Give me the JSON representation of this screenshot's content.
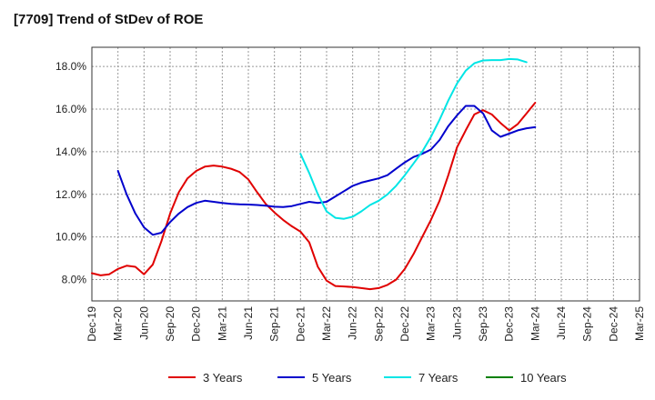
{
  "chart_data": {
    "type": "line",
    "title": "[7709]  Trend of StDev of ROE",
    "xlabel": "",
    "ylabel": "",
    "ylim": [
      7.0,
      18.9
    ],
    "grid": true,
    "legend_position": "bottom",
    "y_ticks": [
      {
        "value": 8,
        "label": "8.0%"
      },
      {
        "value": 10,
        "label": "10.0%"
      },
      {
        "value": 12,
        "label": "12.0%"
      },
      {
        "value": 14,
        "label": "14.0%"
      },
      {
        "value": 16,
        "label": "16.0%"
      },
      {
        "value": 18,
        "label": "18.0%"
      }
    ],
    "x_ticks": [
      "Dec-19",
      "Mar-20",
      "Jun-20",
      "Sep-20",
      "Dec-20",
      "Mar-21",
      "Jun-21",
      "Sep-21",
      "Dec-21",
      "Mar-22",
      "Jun-22",
      "Sep-22",
      "Dec-22",
      "Mar-23",
      "Jun-23",
      "Sep-23",
      "Dec-23",
      "Mar-24",
      "Jun-24",
      "Sep-24",
      "Dec-24",
      "Mar-25"
    ],
    "series": [
      {
        "name": "3 Years",
        "color": "#e00000",
        "points": [
          [
            0,
            8.3
          ],
          [
            1,
            8.2
          ],
          [
            2,
            8.25
          ],
          [
            3,
            8.5
          ],
          [
            4,
            8.65
          ],
          [
            5,
            8.6
          ],
          [
            6,
            8.25
          ],
          [
            7,
            8.7
          ],
          [
            8,
            9.8
          ],
          [
            9,
            11.1
          ],
          [
            10,
            12.1
          ],
          [
            11,
            12.75
          ],
          [
            12,
            13.1
          ],
          [
            13,
            13.3
          ],
          [
            14,
            13.35
          ],
          [
            15,
            13.3
          ],
          [
            16,
            13.2
          ],
          [
            17,
            13.05
          ],
          [
            18,
            12.7
          ],
          [
            19,
            12.1
          ],
          [
            20,
            11.55
          ],
          [
            21,
            11.15
          ],
          [
            22,
            10.8
          ],
          [
            23,
            10.5
          ],
          [
            24,
            10.25
          ],
          [
            25,
            9.75
          ],
          [
            26,
            8.6
          ],
          [
            27,
            7.95
          ],
          [
            28,
            7.7
          ],
          [
            29,
            7.68
          ],
          [
            30,
            7.65
          ],
          [
            31,
            7.6
          ],
          [
            32,
            7.55
          ],
          [
            33,
            7.6
          ],
          [
            34,
            7.75
          ],
          [
            35,
            8.0
          ],
          [
            36,
            8.5
          ],
          [
            37,
            9.2
          ],
          [
            38,
            10.0
          ],
          [
            39,
            10.8
          ],
          [
            40,
            11.7
          ],
          [
            41,
            12.9
          ],
          [
            42,
            14.2
          ],
          [
            43,
            15.0
          ],
          [
            44,
            15.75
          ],
          [
            45,
            15.95
          ],
          [
            46,
            15.75
          ],
          [
            47,
            15.35
          ],
          [
            48,
            15.0
          ],
          [
            49,
            15.3
          ],
          [
            50,
            15.8
          ],
          [
            51,
            16.3
          ]
        ]
      },
      {
        "name": "5 Years",
        "color": "#0000cc",
        "points": [
          [
            3,
            13.1
          ],
          [
            4,
            12.0
          ],
          [
            5,
            11.1
          ],
          [
            6,
            10.45
          ],
          [
            7,
            10.1
          ],
          [
            8,
            10.2
          ],
          [
            9,
            10.7
          ],
          [
            10,
            11.1
          ],
          [
            11,
            11.4
          ],
          [
            12,
            11.6
          ],
          [
            13,
            11.7
          ],
          [
            14,
            11.65
          ],
          [
            15,
            11.6
          ],
          [
            16,
            11.55
          ],
          [
            17,
            11.53
          ],
          [
            18,
            11.52
          ],
          [
            19,
            11.5
          ],
          [
            20,
            11.47
          ],
          [
            21,
            11.42
          ],
          [
            22,
            11.4
          ],
          [
            23,
            11.45
          ],
          [
            24,
            11.55
          ],
          [
            25,
            11.65
          ],
          [
            26,
            11.6
          ],
          [
            27,
            11.65
          ],
          [
            28,
            11.9
          ],
          [
            29,
            12.15
          ],
          [
            30,
            12.4
          ],
          [
            31,
            12.55
          ],
          [
            32,
            12.65
          ],
          [
            33,
            12.75
          ],
          [
            34,
            12.9
          ],
          [
            35,
            13.2
          ],
          [
            36,
            13.5
          ],
          [
            37,
            13.75
          ],
          [
            38,
            13.9
          ],
          [
            39,
            14.1
          ],
          [
            40,
            14.55
          ],
          [
            41,
            15.2
          ],
          [
            42,
            15.7
          ],
          [
            43,
            16.15
          ],
          [
            44,
            16.15
          ],
          [
            45,
            15.8
          ],
          [
            46,
            15.0
          ],
          [
            47,
            14.7
          ],
          [
            48,
            14.85
          ],
          [
            49,
            15.0
          ],
          [
            50,
            15.1
          ],
          [
            51,
            15.15
          ]
        ]
      },
      {
        "name": "7 Years",
        "color": "#00e5e5",
        "points": [
          [
            24,
            13.9
          ],
          [
            25,
            13.0
          ],
          [
            26,
            12.0
          ],
          [
            27,
            11.2
          ],
          [
            28,
            10.9
          ],
          [
            29,
            10.85
          ],
          [
            30,
            10.95
          ],
          [
            31,
            11.2
          ],
          [
            32,
            11.5
          ],
          [
            33,
            11.7
          ],
          [
            34,
            12.0
          ],
          [
            35,
            12.4
          ],
          [
            36,
            12.9
          ],
          [
            37,
            13.45
          ],
          [
            38,
            14.0
          ],
          [
            39,
            14.7
          ],
          [
            40,
            15.5
          ],
          [
            41,
            16.4
          ],
          [
            42,
            17.2
          ],
          [
            43,
            17.8
          ],
          [
            44,
            18.15
          ],
          [
            45,
            18.28
          ],
          [
            46,
            18.3
          ],
          [
            47,
            18.3
          ],
          [
            48,
            18.35
          ],
          [
            49,
            18.33
          ],
          [
            50,
            18.2
          ]
        ]
      },
      {
        "name": "10 Years",
        "color": "#008000",
        "points": []
      }
    ]
  }
}
